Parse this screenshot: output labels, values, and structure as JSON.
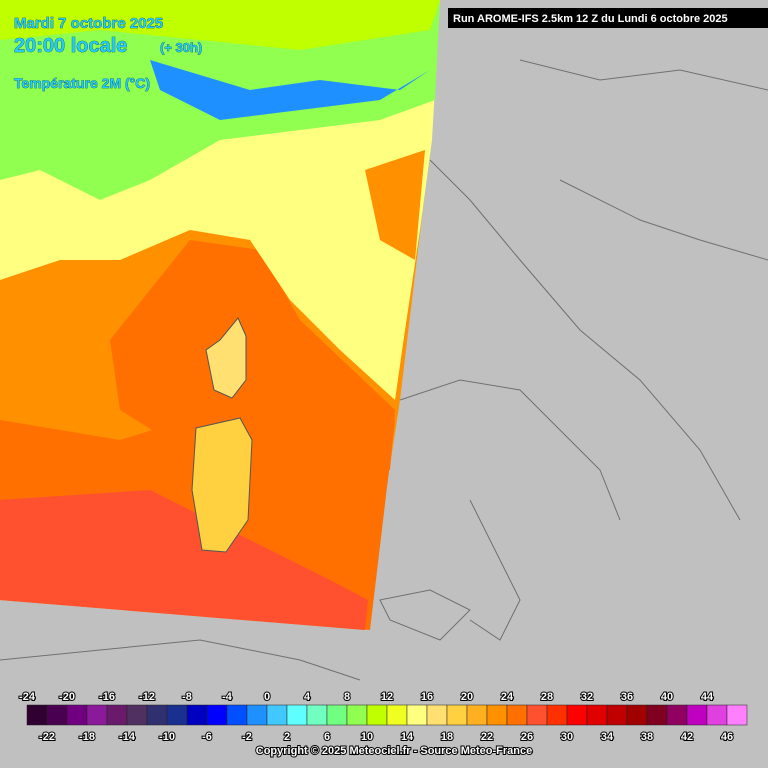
{
  "header": {
    "date": "Mardi 7 octobre 2025",
    "time": "20:00 locale",
    "offset": "(+ 30h)",
    "variable": "Température 2M (°C)"
  },
  "run": "Run AROME-IFS 2.5km 12 Z du Lundi 6 octobre 2025",
  "legend": {
    "items": [
      {
        "value": -24,
        "color": "#300030"
      },
      {
        "value": -22,
        "color": "#4a0050"
      },
      {
        "value": -20,
        "color": "#700080"
      },
      {
        "value": -18,
        "color": "#8a1a9a"
      },
      {
        "value": -16,
        "color": "#6a1a6a"
      },
      {
        "value": -14,
        "color": "#503060"
      },
      {
        "value": -12,
        "color": "#303070"
      },
      {
        "value": -10,
        "color": "#1a3090"
      },
      {
        "value": -8,
        "color": "#0000c0"
      },
      {
        "value": -6,
        "color": "#0000ff"
      },
      {
        "value": -4,
        "color": "#0050ff"
      },
      {
        "value": -2,
        "color": "#1e90ff"
      },
      {
        "value": 0,
        "color": "#40c8ff"
      },
      {
        "value": 2,
        "color": "#60ffff"
      },
      {
        "value": 4,
        "color": "#70ffc0"
      },
      {
        "value": 6,
        "color": "#70ff80"
      },
      {
        "value": 8,
        "color": "#90ff50"
      },
      {
        "value": 10,
        "color": "#c0ff00"
      },
      {
        "value": 12,
        "color": "#f0ff20"
      },
      {
        "value": 14,
        "color": "#ffff80"
      },
      {
        "value": 16,
        "color": "#ffe070"
      },
      {
        "value": 18,
        "color": "#ffd040"
      },
      {
        "value": 20,
        "color": "#ffb020"
      },
      {
        "value": 22,
        "color": "#ff9000"
      },
      {
        "value": 24,
        "color": "#ff7000"
      },
      {
        "value": 26,
        "color": "#ff5030"
      },
      {
        "value": 28,
        "color": "#ff3000"
      },
      {
        "value": 30,
        "color": "#ff0000"
      },
      {
        "value": 32,
        "color": "#e00000"
      },
      {
        "value": 34,
        "color": "#c00000"
      },
      {
        "value": 36,
        "color": "#a00000"
      },
      {
        "value": 38,
        "color": "#800020"
      },
      {
        "value": 40,
        "color": "#900060"
      },
      {
        "value": 42,
        "color": "#c000c0"
      },
      {
        "value": 44,
        "color": "#e040e0"
      },
      {
        "value": 46,
        "color": "#ff80ff"
      }
    ]
  },
  "copyright": "Copyright © 2025 Meteociel.fr - Source Meteo-France"
}
